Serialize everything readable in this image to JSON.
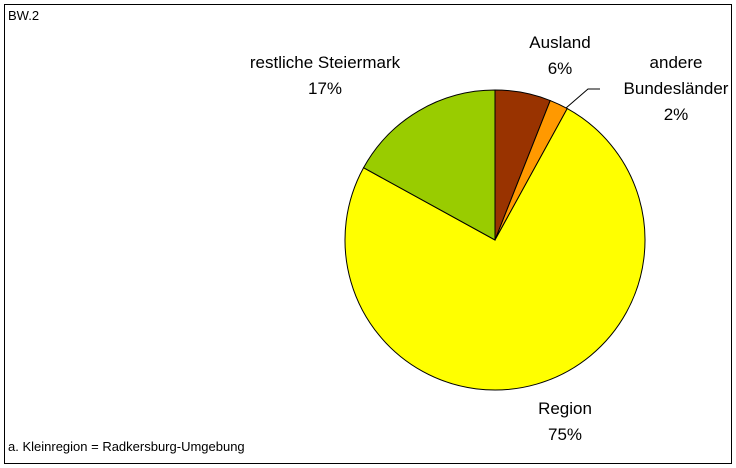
{
  "chart_data": {
    "type": "pie",
    "annotations": [
      "BW.2",
      "a. Kleinregion = Radkersburg-Umgebung"
    ],
    "categories": [
      "Ausland",
      "andere Bundesländer",
      "Region",
      "restliche Steiermark"
    ],
    "values": [
      6,
      2,
      75,
      17
    ],
    "value_labels": [
      "6%",
      "2%",
      "75%",
      "17%"
    ],
    "colors": [
      "#993300",
      "#ff9900",
      "#ffff00",
      "#99cc00"
    ]
  }
}
